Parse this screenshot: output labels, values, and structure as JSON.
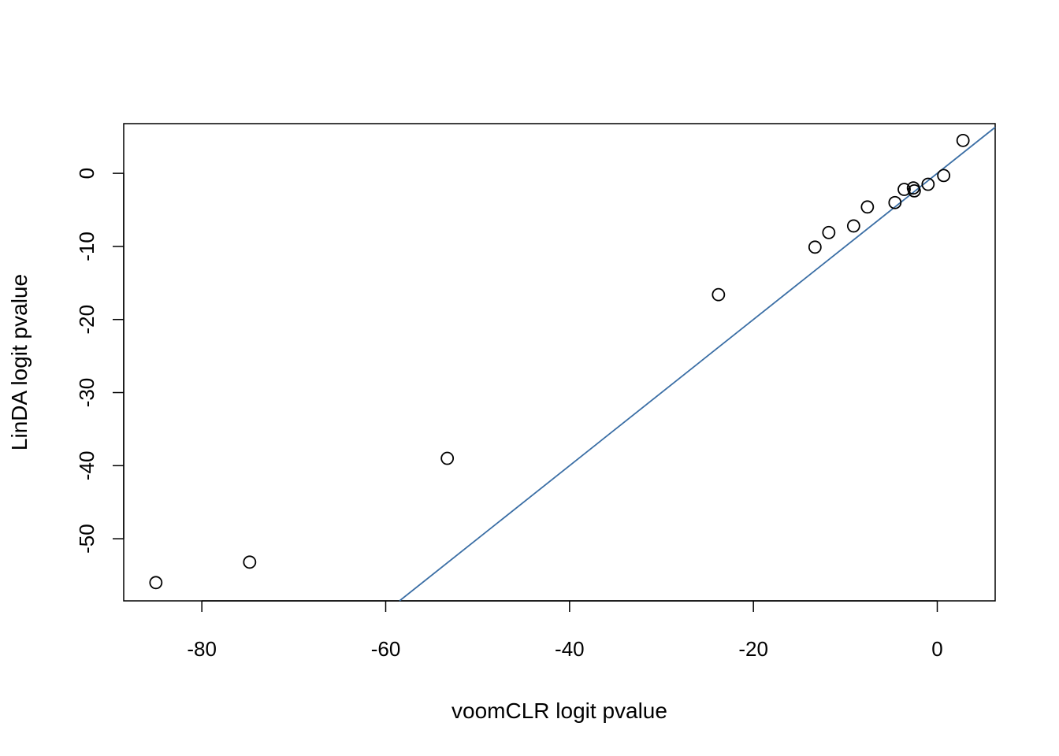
{
  "chart_data": {
    "type": "scatter",
    "xlabel": "voomCLR logit pvalue",
    "ylabel": "LinDA logit pvalue",
    "xlim": [
      -88.5,
      6.3
    ],
    "ylim": [
      -58.5,
      6.8
    ],
    "x_ticks": [
      -80,
      -60,
      -40,
      -20,
      0
    ],
    "y_ticks": [
      -50,
      -40,
      -30,
      -20,
      -10,
      0
    ],
    "x_tick_labels": [
      "-80",
      "-60",
      "-40",
      "-20",
      "0"
    ],
    "y_tick_labels": [
      "-50",
      "-40",
      "-30",
      "-20",
      "-10",
      "0"
    ],
    "points": [
      {
        "x": -85.0,
        "y": -56.0
      },
      {
        "x": -74.8,
        "y": -53.2
      },
      {
        "x": -53.3,
        "y": -39.0
      },
      {
        "x": -23.8,
        "y": -16.6
      },
      {
        "x": -13.3,
        "y": -10.1
      },
      {
        "x": -11.8,
        "y": -8.1
      },
      {
        "x": -9.1,
        "y": -7.2
      },
      {
        "x": -7.6,
        "y": -4.6
      },
      {
        "x": -4.6,
        "y": -4.0
      },
      {
        "x": -3.6,
        "y": -2.2
      },
      {
        "x": -2.6,
        "y": -2.0
      },
      {
        "x": -2.5,
        "y": -2.4
      },
      {
        "x": -1.0,
        "y": -1.5
      },
      {
        "x": 0.7,
        "y": -0.3
      },
      {
        "x": 2.8,
        "y": 4.5
      }
    ],
    "reference_line": {
      "intercept": 0,
      "slope": 1,
      "color": "#3a6ea5"
    },
    "point_color": "#000000"
  }
}
